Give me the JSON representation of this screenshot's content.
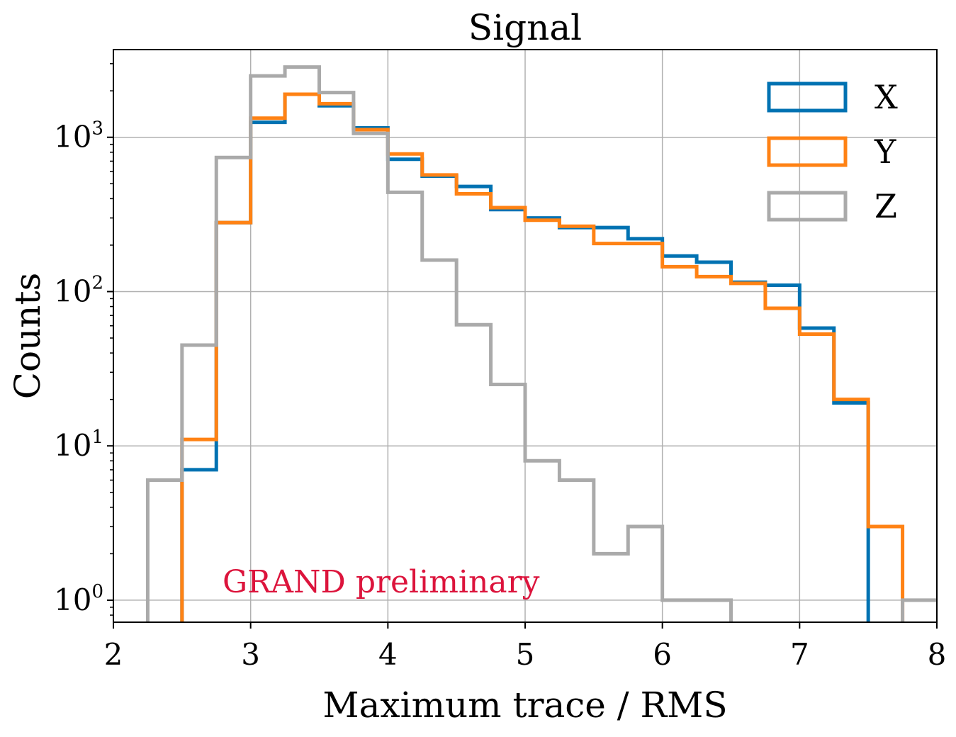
{
  "chart_data": {
    "type": "step-histogram",
    "title": "Signal",
    "xlabel": "Maximum trace / RMS",
    "ylabel": "Counts",
    "xlim": [
      2,
      8
    ],
    "ylim": [
      0.72,
      3700
    ],
    "yscale": "log",
    "grid": true,
    "legend_position": "top-right",
    "x_ticks": [
      "2",
      "3",
      "4",
      "5",
      "6",
      "7",
      "8"
    ],
    "y_ticks": [
      {
        "base": "10",
        "exp": "0",
        "value": 1
      },
      {
        "base": "10",
        "exp": "1",
        "value": 10
      },
      {
        "base": "10",
        "exp": "2",
        "value": 100
      },
      {
        "base": "10",
        "exp": "3",
        "value": 1000
      }
    ],
    "bin_edges": [
      2.0,
      2.25,
      2.5,
      2.75,
      3.0,
      3.25,
      3.5,
      3.75,
      4.0,
      4.25,
      4.5,
      4.75,
      5.0,
      5.25,
      5.5,
      5.75,
      6.0,
      6.25,
      6.5,
      6.75,
      7.0,
      7.25,
      7.5,
      7.75,
      8.0
    ],
    "series": [
      {
        "name": "X",
        "color": "#0072B2",
        "values": [
          0,
          0,
          7,
          280,
          1250,
          1900,
          1600,
          1150,
          720,
          560,
          480,
          340,
          300,
          260,
          260,
          220,
          170,
          155,
          115,
          110,
          58,
          19,
          0,
          0
        ]
      },
      {
        "name": "Y",
        "color": "#FF8214",
        "values": [
          0,
          0,
          11,
          280,
          1330,
          1900,
          1650,
          1120,
          780,
          570,
          430,
          350,
          290,
          265,
          205,
          205,
          145,
          125,
          113,
          78,
          53,
          20,
          3,
          0
        ]
      },
      {
        "name": "Z",
        "color": "#AAAAAA",
        "values": [
          0,
          6,
          45,
          740,
          2500,
          2850,
          1950,
          1060,
          440,
          160,
          61,
          25,
          8,
          6,
          2,
          3,
          1,
          1,
          0,
          0,
          0,
          0,
          0,
          1
        ]
      }
    ],
    "annotation": {
      "text": "GRAND preliminary",
      "color": "#DC143C"
    }
  }
}
